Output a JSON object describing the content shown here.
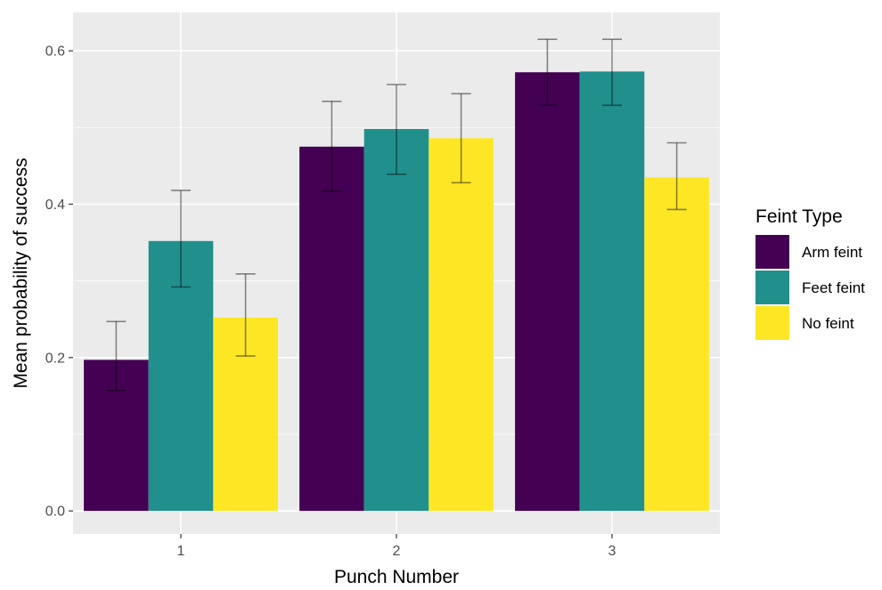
{
  "chart_data": {
    "type": "bar",
    "xlabel": "Punch Number",
    "ylabel": "Mean probability of success",
    "categories": [
      "1",
      "2",
      "3"
    ],
    "ylim": [
      -0.03,
      0.65
    ],
    "yticks": [
      "0.0",
      "0.2",
      "0.4",
      "0.6"
    ],
    "grid": true,
    "legend": {
      "title": "Feint Type",
      "placement": "right"
    },
    "series": [
      {
        "name": "Arm feint",
        "color": "#440154",
        "values": [
          0.197,
          0.475,
          0.572
        ],
        "err_low": [
          0.157,
          0.417,
          0.529
        ],
        "err_high": [
          0.247,
          0.534,
          0.615
        ]
      },
      {
        "name": "Feet feint",
        "color": "#21908c",
        "values": [
          0.352,
          0.498,
          0.573
        ],
        "err_low": [
          0.292,
          0.439,
          0.529
        ],
        "err_high": [
          0.418,
          0.556,
          0.615
        ]
      },
      {
        "name": "No feint",
        "color": "#fde725",
        "values": [
          0.252,
          0.486,
          0.435
        ],
        "err_low": [
          0.202,
          0.428,
          0.393
        ],
        "err_high": [
          0.309,
          0.544,
          0.48
        ]
      }
    ]
  }
}
